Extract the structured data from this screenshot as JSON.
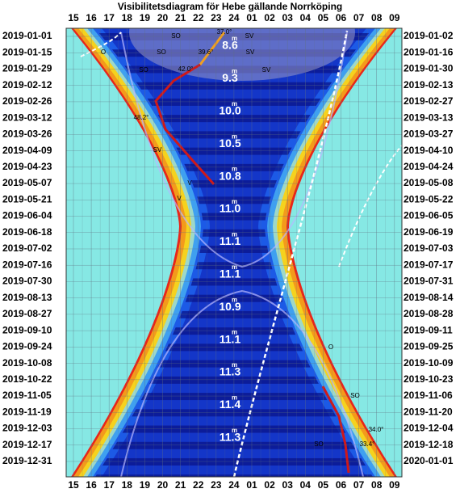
{
  "chart_data": {
    "type": "visibility",
    "title": "Visibilitetsdiagram för Hebe gällande Norrköping",
    "hours": [
      "15",
      "16",
      "17",
      "18",
      "19",
      "20",
      "21",
      "22",
      "23",
      "24",
      "01",
      "02",
      "03",
      "04",
      "05",
      "06",
      "07",
      "08",
      "09"
    ],
    "dates_left": [
      "2019-01-01",
      "2019-01-15",
      "2019-01-29",
      "2019-02-12",
      "2019-02-26",
      "2019-03-12",
      "2019-03-26",
      "2019-04-09",
      "2019-04-23",
      "2019-05-07",
      "2019-05-21",
      "2019-06-04",
      "2019-06-18",
      "2019-07-02",
      "2019-07-16",
      "2019-07-30",
      "2019-08-13",
      "2019-08-27",
      "2019-09-10",
      "2019-09-24",
      "2019-10-08",
      "2019-10-22",
      "2019-11-05",
      "2019-11-19",
      "2019-12-03",
      "2019-12-17",
      "2019-12-31"
    ],
    "dates_right": [
      "2019-01-02",
      "2019-01-16",
      "2019-01-30",
      "2019-02-13",
      "2019-02-27",
      "2019-03-13",
      "2019-03-27",
      "2019-04-10",
      "2019-04-24",
      "2019-05-08",
      "2019-05-22",
      "2019-06-05",
      "2019-06-19",
      "2019-07-03",
      "2019-07-17",
      "2019-07-31",
      "2019-08-14",
      "2019-08-28",
      "2019-09-11",
      "2019-09-25",
      "2019-10-09",
      "2019-10-23",
      "2019-11-06",
      "2019-11-20",
      "2019-12-04",
      "2019-12-18",
      "2020-01-01"
    ],
    "magnitudes": [
      "8.6",
      "9.3",
      "10.0",
      "10.5",
      "10.8",
      "11.0",
      "11.1",
      "11.1",
      "10.9",
      "11.1",
      "11.3",
      "11.4",
      "11.3"
    ],
    "magnitude_suffix": "m",
    "annotations": [
      "SO",
      "SV",
      "37.0°",
      "O",
      "SO",
      "39.6°",
      "SV",
      "SO",
      "42.0°",
      "SV",
      "48.2°",
      "SV",
      "V",
      "V",
      "O",
      "SO",
      "34.0°",
      "SO",
      "33.4°"
    ]
  }
}
